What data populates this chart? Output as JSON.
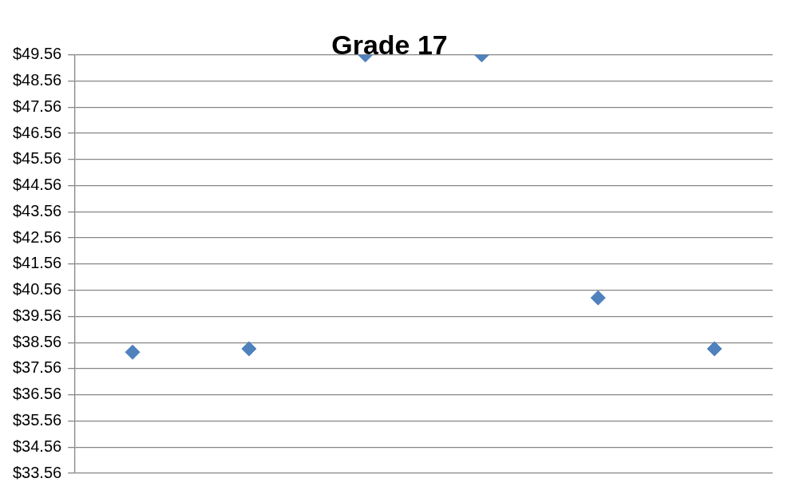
{
  "chart_data": {
    "type": "scatter",
    "title": "Grade 17",
    "categories": [
      null,
      null,
      null,
      null,
      null,
      null
    ],
    "values": [
      38.19,
      38.32,
      49.56,
      49.56,
      40.27,
      38.32
    ],
    "color": "#4f81bd",
    "marker": "diamond",
    "tick_labels": "y",
    "grid": "y",
    "legend": false,
    "ylim": [
      33.56,
      49.56
    ],
    "yticks": [
      {
        "value": 33.56,
        "label": "$33.56"
      },
      {
        "value": 34.56,
        "label": "$34.56"
      },
      {
        "value": 35.56,
        "label": "$35.56"
      },
      {
        "value": 36.56,
        "label": "$36.56"
      },
      {
        "value": 37.56,
        "label": "$37.56"
      },
      {
        "value": 38.56,
        "label": "$38.56"
      },
      {
        "value": 39.56,
        "label": "$39.56"
      },
      {
        "value": 40.56,
        "label": "$40.56"
      },
      {
        "value": 41.56,
        "label": "$41.56"
      },
      {
        "value": 42.56,
        "label": "$42.56"
      },
      {
        "value": 43.56,
        "label": "$43.56"
      },
      {
        "value": 44.56,
        "label": "$44.56"
      },
      {
        "value": 45.56,
        "label": "$45.56"
      },
      {
        "value": 46.56,
        "label": "$46.56"
      },
      {
        "value": 47.56,
        "label": "$47.56"
      },
      {
        "value": 48.56,
        "label": "$48.56"
      },
      {
        "value": 49.56,
        "label": "$49.56"
      }
    ]
  }
}
